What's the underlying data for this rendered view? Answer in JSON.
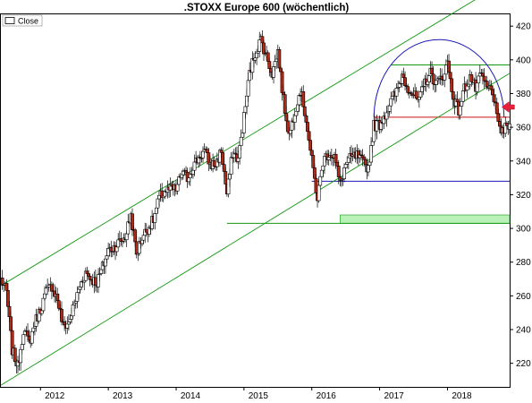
{
  "chart_data": {
    "type": "candlestick",
    "title": ".STOXX Europe 600 (wöchentlich)",
    "legend": {
      "label": "Close",
      "position": "top-left"
    },
    "xlabel": "",
    "ylabel": "",
    "x_ticks": [
      "2012",
      "2013",
      "2014",
      "2015",
      "2016",
      "2017",
      "2018"
    ],
    "y_ticks": [
      220,
      240,
      260,
      280,
      300,
      320,
      340,
      360,
      380,
      400,
      420
    ],
    "xlim": [
      "2011-06",
      "2018-12"
    ],
    "ylim": [
      206,
      427
    ],
    "grid": false,
    "y_axis_side": "right",
    "colors": {
      "candle_up": "#ffffff",
      "candle_down": "#b02a16",
      "candle_outline": "#000000",
      "channel": "#129a12",
      "support_red": "#d01010",
      "support_blue": "#1a1ab8",
      "arc": "#1a1ab8",
      "zone_fill": "#b8f0b8",
      "arrow": "#e8203c"
    },
    "closes": [
      {
        "x": "2011-06",
        "y": 270
      },
      {
        "x": "2011-07",
        "y": 262
      },
      {
        "x": "2011-08",
        "y": 228
      },
      {
        "x": "2011-09",
        "y": 218
      },
      {
        "x": "2011-10",
        "y": 240
      },
      {
        "x": "2011-11",
        "y": 232
      },
      {
        "x": "2011-12",
        "y": 244
      },
      {
        "x": "2012-01",
        "y": 252
      },
      {
        "x": "2012-02",
        "y": 262
      },
      {
        "x": "2012-03",
        "y": 266
      },
      {
        "x": "2012-04",
        "y": 258
      },
      {
        "x": "2012-05",
        "y": 242
      },
      {
        "x": "2012-06",
        "y": 244
      },
      {
        "x": "2012-07",
        "y": 255
      },
      {
        "x": "2012-08",
        "y": 266
      },
      {
        "x": "2012-09",
        "y": 274
      },
      {
        "x": "2012-10",
        "y": 270
      },
      {
        "x": "2012-11",
        "y": 268
      },
      {
        "x": "2012-12",
        "y": 277
      },
      {
        "x": "2013-01",
        "y": 287
      },
      {
        "x": "2013-02",
        "y": 289
      },
      {
        "x": "2013-03",
        "y": 292
      },
      {
        "x": "2013-04",
        "y": 295
      },
      {
        "x": "2013-05",
        "y": 308
      },
      {
        "x": "2013-06",
        "y": 285
      },
      {
        "x": "2013-07",
        "y": 295
      },
      {
        "x": "2013-08",
        "y": 300
      },
      {
        "x": "2013-09",
        "y": 305
      },
      {
        "x": "2013-10",
        "y": 318
      },
      {
        "x": "2013-11",
        "y": 322
      },
      {
        "x": "2013-12",
        "y": 323
      },
      {
        "x": "2014-01",
        "y": 323
      },
      {
        "x": "2014-02",
        "y": 333
      },
      {
        "x": "2014-03",
        "y": 330
      },
      {
        "x": "2014-04",
        "y": 337
      },
      {
        "x": "2014-05",
        "y": 342
      },
      {
        "x": "2014-06",
        "y": 346
      },
      {
        "x": "2014-07",
        "y": 338
      },
      {
        "x": "2014-08",
        "y": 338
      },
      {
        "x": "2014-09",
        "y": 346
      },
      {
        "x": "2014-10",
        "y": 320
      },
      {
        "x": "2014-11",
        "y": 345
      },
      {
        "x": "2014-12",
        "y": 341
      },
      {
        "x": "2015-01",
        "y": 366
      },
      {
        "x": "2015-02",
        "y": 392
      },
      {
        "x": "2015-03",
        "y": 404
      },
      {
        "x": "2015-04",
        "y": 412
      },
      {
        "x": "2015-05",
        "y": 402
      },
      {
        "x": "2015-06",
        "y": 392
      },
      {
        "x": "2015-07",
        "y": 405
      },
      {
        "x": "2015-08",
        "y": 376
      },
      {
        "x": "2015-09",
        "y": 355
      },
      {
        "x": "2015-10",
        "y": 370
      },
      {
        "x": "2015-11",
        "y": 382
      },
      {
        "x": "2015-12",
        "y": 365
      },
      {
        "x": "2016-01",
        "y": 340
      },
      {
        "x": "2016-02",
        "y": 318
      },
      {
        "x": "2016-03",
        "y": 340
      },
      {
        "x": "2016-04",
        "y": 345
      },
      {
        "x": "2016-05",
        "y": 343
      },
      {
        "x": "2016-06",
        "y": 326
      },
      {
        "x": "2016-07",
        "y": 338
      },
      {
        "x": "2016-08",
        "y": 342
      },
      {
        "x": "2016-09",
        "y": 343
      },
      {
        "x": "2016-10",
        "y": 339
      },
      {
        "x": "2016-11",
        "y": 336
      },
      {
        "x": "2016-12",
        "y": 361
      },
      {
        "x": "2017-01",
        "y": 362
      },
      {
        "x": "2017-02",
        "y": 368
      },
      {
        "x": "2017-03",
        "y": 375
      },
      {
        "x": "2017-04",
        "y": 381
      },
      {
        "x": "2017-05",
        "y": 391
      },
      {
        "x": "2017-06",
        "y": 384
      },
      {
        "x": "2017-07",
        "y": 379
      },
      {
        "x": "2017-08",
        "y": 375
      },
      {
        "x": "2017-09",
        "y": 387
      },
      {
        "x": "2017-10",
        "y": 392
      },
      {
        "x": "2017-11",
        "y": 386
      },
      {
        "x": "2017-12",
        "y": 389
      },
      {
        "x": "2018-01",
        "y": 398
      },
      {
        "x": "2018-02",
        "y": 378
      },
      {
        "x": "2018-03",
        "y": 370
      },
      {
        "x": "2018-04",
        "y": 383
      },
      {
        "x": "2018-05",
        "y": 390
      },
      {
        "x": "2018-06",
        "y": 383
      },
      {
        "x": "2018-07",
        "y": 391
      },
      {
        "x": "2018-08",
        "y": 383
      },
      {
        "x": "2018-09",
        "y": 382
      },
      {
        "x": "2018-10",
        "y": 360
      },
      {
        "x": "2018-11",
        "y": 358
      },
      {
        "x": "2018-12",
        "y": 362
      }
    ],
    "annotations": {
      "channel_lines": [
        {
          "points": [
            {
              "x": "2011-06",
              "y": 266
            },
            {
              "x": "2018-12",
              "y": 448
            }
          ]
        },
        {
          "points": [
            {
              "x": "2011-06",
              "y": 207
            },
            {
              "x": "2018-12",
              "y": 392
            }
          ]
        }
      ],
      "horizontal_lines": [
        {
          "color": "green",
          "y": 303,
          "from": "2014-10",
          "to": "2018-12"
        },
        {
          "color": "green",
          "y": 397,
          "from": "2017-03",
          "to": "2018-12"
        },
        {
          "color": "red",
          "y": 366,
          "from": "2016-12",
          "to": "2018-12"
        },
        {
          "color": "blue",
          "y": 328,
          "from": "2016-01",
          "to": "2018-12"
        }
      ],
      "zones": [
        {
          "color": "green",
          "y_from": 303,
          "y_to": 308,
          "from": "2016-06",
          "to": "2018-12"
        }
      ],
      "arcs": [
        {
          "color": "blue",
          "from": "2016-12",
          "to": "2018-11",
          "base_y": 366,
          "peak_y": 412
        }
      ],
      "arrows": [
        {
          "color": "red",
          "x": "2018-10",
          "y": 372,
          "direction": "left"
        }
      ]
    }
  }
}
